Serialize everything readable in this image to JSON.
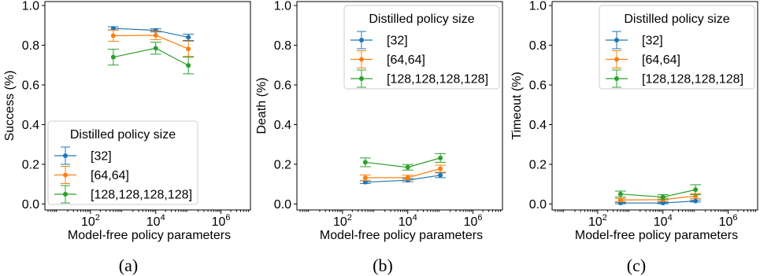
{
  "colors": {
    "s32": "#1f77b4",
    "s64": "#ff7f0e",
    "s128": "#2ca02c"
  },
  "chart_data": [
    {
      "type": "line",
      "caption": "(a)",
      "xlabel": "Model-free policy parameters",
      "ylabel": "Success (%)",
      "xscale": "log",
      "xlim": [
        4,
        8000000
      ],
      "ylim": [
        -0.03,
        1.02
      ],
      "xticks": [
        {
          "value": 100,
          "base": "10",
          "exp": "2"
        },
        {
          "value": 10000,
          "base": "10",
          "exp": "4"
        },
        {
          "value": 1000000,
          "base": "10",
          "exp": "6"
        }
      ],
      "yticks": [
        {
          "value": 0.0,
          "label": "0.0"
        },
        {
          "value": 0.2,
          "label": "0.2"
        },
        {
          "value": 0.4,
          "label": "0.4"
        },
        {
          "value": 0.6,
          "label": "0.6"
        },
        {
          "value": 0.8,
          "label": "0.8"
        },
        {
          "value": 1.0,
          "label": "1.0"
        }
      ],
      "legend": {
        "title": "Distilled policy size",
        "placement": "lower-left"
      },
      "x": [
        500,
        10000,
        100000
      ],
      "series": [
        {
          "name": "[32]",
          "color": "#1f77b4",
          "values": [
            0.885,
            0.875,
            0.84
          ],
          "err": [
            0.008,
            0.008,
            0.016
          ]
        },
        {
          "name": "[64,64]",
          "color": "#ff7f0e",
          "values": [
            0.848,
            0.85,
            0.782
          ],
          "err": [
            0.028,
            0.022,
            0.038
          ]
        },
        {
          "name": "[128,128,128,128]",
          "color": "#2ca02c",
          "values": [
            0.74,
            0.785,
            0.698
          ],
          "err": [
            0.04,
            0.03,
            0.042
          ]
        }
      ]
    },
    {
      "type": "line",
      "caption": "(b)",
      "xlabel": "Model-free policy parameters",
      "ylabel": "Death (%)",
      "xscale": "log",
      "xlim": [
        4,
        8000000
      ],
      "ylim": [
        -0.03,
        1.02
      ],
      "xticks": [
        {
          "value": 100,
          "base": "10",
          "exp": "2"
        },
        {
          "value": 10000,
          "base": "10",
          "exp": "4"
        },
        {
          "value": 1000000,
          "base": "10",
          "exp": "6"
        }
      ],
      "yticks": [
        {
          "value": 0.0,
          "label": "0.0"
        },
        {
          "value": 0.2,
          "label": "0.2"
        },
        {
          "value": 0.4,
          "label": "0.4"
        },
        {
          "value": 0.6,
          "label": "0.6"
        },
        {
          "value": 0.8,
          "label": "0.8"
        },
        {
          "value": 1.0,
          "label": "1.0"
        }
      ],
      "legend": {
        "title": "Distilled policy size",
        "placement": "upper-right"
      },
      "x": [
        500,
        10000,
        100000
      ],
      "series": [
        {
          "name": "[32]",
          "color": "#1f77b4",
          "values": [
            0.11,
            0.12,
            0.145
          ],
          "err": [
            0.007,
            0.008,
            0.012
          ]
        },
        {
          "name": "[64,64]",
          "color": "#ff7f0e",
          "values": [
            0.132,
            0.133,
            0.178
          ],
          "err": [
            0.014,
            0.012,
            0.018
          ]
        },
        {
          "name": "[128,128,128,128]",
          "color": "#2ca02c",
          "values": [
            0.21,
            0.185,
            0.232
          ],
          "err": [
            0.022,
            0.014,
            0.022
          ]
        }
      ]
    },
    {
      "type": "line",
      "caption": "(c)",
      "xlabel": "Model-free policy parameters",
      "ylabel": "Timeout (%)",
      "xscale": "log",
      "xlim": [
        4,
        8000000
      ],
      "ylim": [
        -0.03,
        1.02
      ],
      "xticks": [
        {
          "value": 100,
          "base": "10",
          "exp": "2"
        },
        {
          "value": 10000,
          "base": "10",
          "exp": "4"
        },
        {
          "value": 1000000,
          "base": "10",
          "exp": "6"
        }
      ],
      "yticks": [
        {
          "value": 0.0,
          "label": "0.0"
        },
        {
          "value": 0.2,
          "label": "0.2"
        },
        {
          "value": 0.4,
          "label": "0.4"
        },
        {
          "value": 0.6,
          "label": "0.6"
        },
        {
          "value": 0.8,
          "label": "0.8"
        },
        {
          "value": 1.0,
          "label": "1.0"
        }
      ],
      "legend": {
        "title": "Distilled policy size",
        "placement": "upper-right"
      },
      "x": [
        500,
        10000,
        100000
      ],
      "series": [
        {
          "name": "[32]",
          "color": "#1f77b4",
          "values": [
            0.005,
            0.005,
            0.015
          ],
          "err": [
            0.004,
            0.004,
            0.005
          ]
        },
        {
          "name": "[64,64]",
          "color": "#ff7f0e",
          "values": [
            0.02,
            0.022,
            0.04
          ],
          "err": [
            0.008,
            0.008,
            0.012
          ]
        },
        {
          "name": "[128,128,128,128]",
          "color": "#2ca02c",
          "values": [
            0.05,
            0.035,
            0.072
          ],
          "err": [
            0.015,
            0.012,
            0.025
          ]
        }
      ]
    }
  ]
}
